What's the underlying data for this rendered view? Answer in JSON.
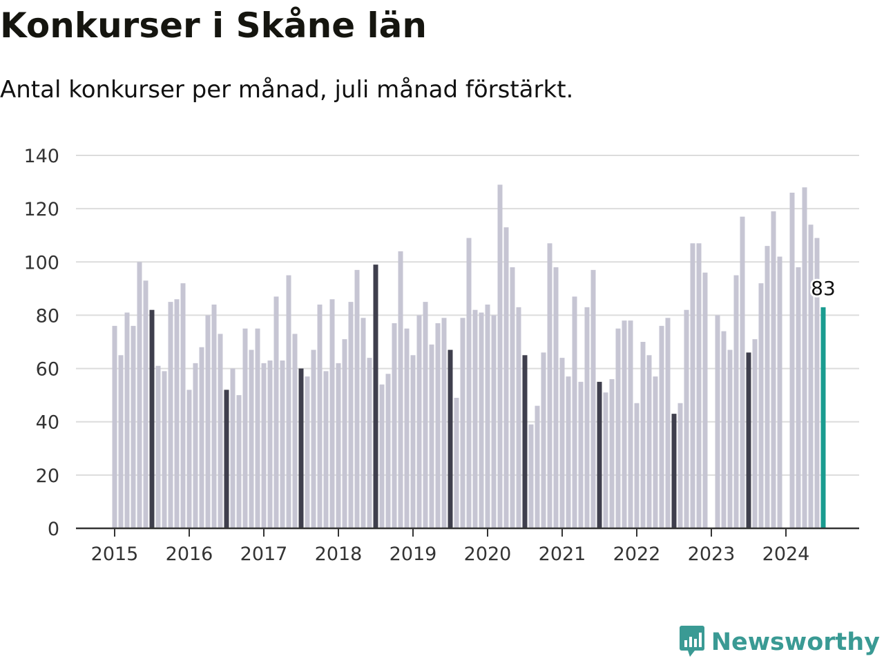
{
  "title": "Konkurser i Skåne län",
  "subtitle": "Antal konkurser per månad, juli månad förstärkt.",
  "brand": {
    "name": "Newsworthy",
    "icon": "newsworthy-chart-bubble-icon"
  },
  "colors": {
    "bar": "#c6c5d3",
    "july": "#3f3f4d",
    "latest": "#1a9c90",
    "grid": "#dcdcdc",
    "axis": "#333333",
    "brand": "#3a9a94"
  },
  "chart_data": {
    "type": "bar",
    "title": "Konkurser i Skåne län",
    "subtitle": "Antal konkurser per månad, juli månad förstärkt.",
    "xlabel": "",
    "ylabel": "",
    "ylim": [
      0,
      140
    ],
    "yticks": [
      0,
      20,
      40,
      60,
      80,
      100,
      120,
      140
    ],
    "xtick_labels": [
      "2015",
      "2016",
      "2017",
      "2018",
      "2019",
      "2020",
      "2021",
      "2022",
      "2023",
      "2024"
    ],
    "start": "2015-01",
    "highlight": "Juli månad förstärkt",
    "grid": true,
    "last_value_label": "83",
    "categories": [
      "2015-01",
      "2015-02",
      "2015-03",
      "2015-04",
      "2015-05",
      "2015-06",
      "2015-07",
      "2015-08",
      "2015-09",
      "2015-10",
      "2015-11",
      "2015-12",
      "2016-01",
      "2016-02",
      "2016-03",
      "2016-04",
      "2016-05",
      "2016-06",
      "2016-07",
      "2016-08",
      "2016-09",
      "2016-10",
      "2016-11",
      "2016-12",
      "2017-01",
      "2017-02",
      "2017-03",
      "2017-04",
      "2017-05",
      "2017-06",
      "2017-07",
      "2017-08",
      "2017-09",
      "2017-10",
      "2017-11",
      "2017-12",
      "2018-01",
      "2018-02",
      "2018-03",
      "2018-04",
      "2018-05",
      "2018-06",
      "2018-07",
      "2018-08",
      "2018-09",
      "2018-10",
      "2018-11",
      "2018-12",
      "2019-01",
      "2019-02",
      "2019-03",
      "2019-04",
      "2019-05",
      "2019-06",
      "2019-07",
      "2019-08",
      "2019-09",
      "2019-10",
      "2019-11",
      "2019-12",
      "2020-01",
      "2020-02",
      "2020-03",
      "2020-04",
      "2020-05",
      "2020-06",
      "2020-07",
      "2020-08",
      "2020-09",
      "2020-10",
      "2020-11",
      "2020-12",
      "2021-01",
      "2021-02",
      "2021-03",
      "2021-04",
      "2021-05",
      "2021-06",
      "2021-07",
      "2021-08",
      "2021-09",
      "2021-10",
      "2021-11",
      "2021-12",
      "2022-01",
      "2022-02",
      "2022-03",
      "2022-04",
      "2022-05",
      "2022-06",
      "2022-07",
      "2022-08",
      "2022-09",
      "2022-10",
      "2022-11",
      "2022-12",
      "2023-01",
      "2023-02",
      "2023-03",
      "2023-04",
      "2023-05",
      "2023-06",
      "2023-07",
      "2023-08",
      "2023-09",
      "2023-10",
      "2023-11",
      "2023-12",
      "2024-01",
      "2024-02",
      "2024-03",
      "2024-04",
      "2024-05",
      "2024-06",
      "2024-07"
    ],
    "values": [
      76,
      65,
      81,
      76,
      100,
      93,
      82,
      61,
      59,
      85,
      86,
      92,
      52,
      62,
      68,
      80,
      84,
      73,
      52,
      60,
      50,
      75,
      67,
      75,
      62,
      63,
      87,
      63,
      95,
      73,
      60,
      57,
      67,
      84,
      59,
      86,
      62,
      71,
      85,
      97,
      79,
      64,
      99,
      54,
      58,
      77,
      104,
      75,
      65,
      80,
      85,
      69,
      77,
      79,
      67,
      49,
      79,
      109,
      82,
      81,
      84,
      80,
      129,
      113,
      98,
      83,
      65,
      39,
      46,
      66,
      107,
      98,
      64,
      57,
      87,
      55,
      83,
      97,
      55,
      51,
      56,
      75,
      78,
      78,
      47,
      70,
      65,
      57,
      76,
      79,
      43,
      47,
      82,
      107,
      107,
      96,
      0,
      80,
      74,
      67,
      95,
      117,
      66,
      71,
      92,
      106,
      119,
      102,
      0,
      126,
      98,
      128,
      114,
      109,
      83
    ]
  }
}
